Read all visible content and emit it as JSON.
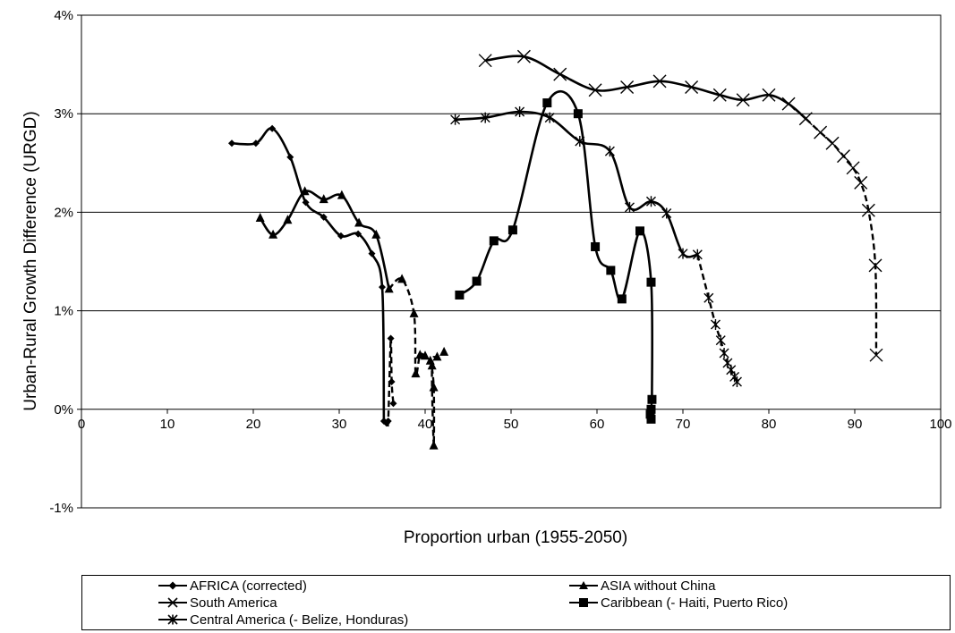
{
  "chart_data": {
    "type": "line",
    "xlabel": "Proportion urban (1955-2050)",
    "ylabel": "Urban-Rural Growth Difference (URGD)",
    "xlim": [
      0,
      100
    ],
    "ylim": [
      -1,
      4
    ],
    "xticks": [
      0,
      10,
      20,
      30,
      40,
      50,
      60,
      70,
      80,
      90,
      100
    ],
    "xtick_labels": [
      "0",
      "10",
      "20",
      "30",
      "40",
      "50",
      "60",
      "70",
      "80",
      "90",
      "100"
    ],
    "yticks": [
      -1,
      0,
      1,
      2,
      3,
      4
    ],
    "ytick_labels": [
      "-1%",
      "0%",
      "1%",
      "2%",
      "3%",
      "4%"
    ],
    "grid": "horizontal",
    "legend_position": "bottom",
    "series": [
      {
        "name": "AFRICA (corrected)",
        "marker": "diamond",
        "color": "#000000",
        "solid_points": 11,
        "x": [
          17.5,
          20.3,
          22.2,
          24.3,
          26.1,
          28.2,
          30.2,
          32.2,
          33.8,
          35.0,
          35.2,
          35.5,
          35.7,
          36.0,
          36.1,
          36.3
        ],
        "y": [
          2.7,
          2.7,
          2.85,
          2.56,
          2.1,
          1.95,
          1.76,
          1.78,
          1.58,
          1.24,
          -0.12,
          -0.14,
          -0.12,
          0.72,
          0.28,
          0.06
        ]
      },
      {
        "name": "ASIA without China",
        "marker": "triangle",
        "color": "#000000",
        "solid_points": 9,
        "x": [
          20.8,
          22.3,
          24.0,
          26.0,
          28.2,
          30.3,
          32.3,
          34.3,
          35.8,
          37.3,
          38.7,
          38.9,
          39.4,
          40.0,
          40.6,
          41.0,
          41.0,
          40.8,
          41.4,
          42.2
        ],
        "y": [
          1.94,
          1.77,
          1.92,
          2.21,
          2.13,
          2.17,
          1.89,
          1.77,
          1.22,
          1.32,
          0.97,
          0.36,
          0.55,
          0.54,
          0.49,
          0.22,
          -0.37,
          0.44,
          0.53,
          0.58
        ]
      },
      {
        "name": "South America",
        "marker": "x",
        "color": "#000000",
        "solid_points": 12,
        "x": [
          47.0,
          51.5,
          55.7,
          59.8,
          63.5,
          67.3,
          71.0,
          74.3,
          77.0,
          80.0,
          82.3,
          84.3,
          86.0,
          87.4,
          88.7,
          89.8,
          90.7,
          91.6,
          92.4,
          92.5
        ],
        "y": [
          3.54,
          3.58,
          3.4,
          3.24,
          3.27,
          3.33,
          3.27,
          3.19,
          3.14,
          3.19,
          3.1,
          2.95,
          2.81,
          2.7,
          2.57,
          2.45,
          2.3,
          2.02,
          1.46,
          0.55
        ]
      },
      {
        "name": "Caribbean (- Haiti, Puerto Rico)",
        "marker": "square",
        "color": "#000000",
        "solid_points": 12,
        "x": [
          44.0,
          46.0,
          48.0,
          50.2,
          54.2,
          57.8,
          59.8,
          61.6,
          62.9,
          65.0,
          66.3,
          66.4,
          66.3,
          66.2,
          66.3
        ],
        "y": [
          1.16,
          1.3,
          1.71,
          1.82,
          3.11,
          3.0,
          1.65,
          1.41,
          1.12,
          1.81,
          1.29,
          0.1,
          0.0,
          -0.05,
          -0.1
        ]
      },
      {
        "name": "Central America (- Belize, Honduras)",
        "marker": "asterisk",
        "color": "#000000",
        "solid_points": 11,
        "x": [
          43.5,
          47.0,
          51.0,
          54.5,
          58.0,
          61.5,
          63.8,
          66.3,
          68.1,
          70.0,
          71.7,
          73.0,
          73.8,
          74.4,
          74.8,
          75.2,
          75.6,
          76.0,
          76.3
        ],
        "y": [
          2.94,
          2.96,
          3.02,
          2.96,
          2.72,
          2.62,
          2.05,
          2.11,
          1.99,
          1.58,
          1.57,
          1.13,
          0.86,
          0.7,
          0.57,
          0.47,
          0.4,
          0.33,
          0.28
        ]
      }
    ]
  }
}
